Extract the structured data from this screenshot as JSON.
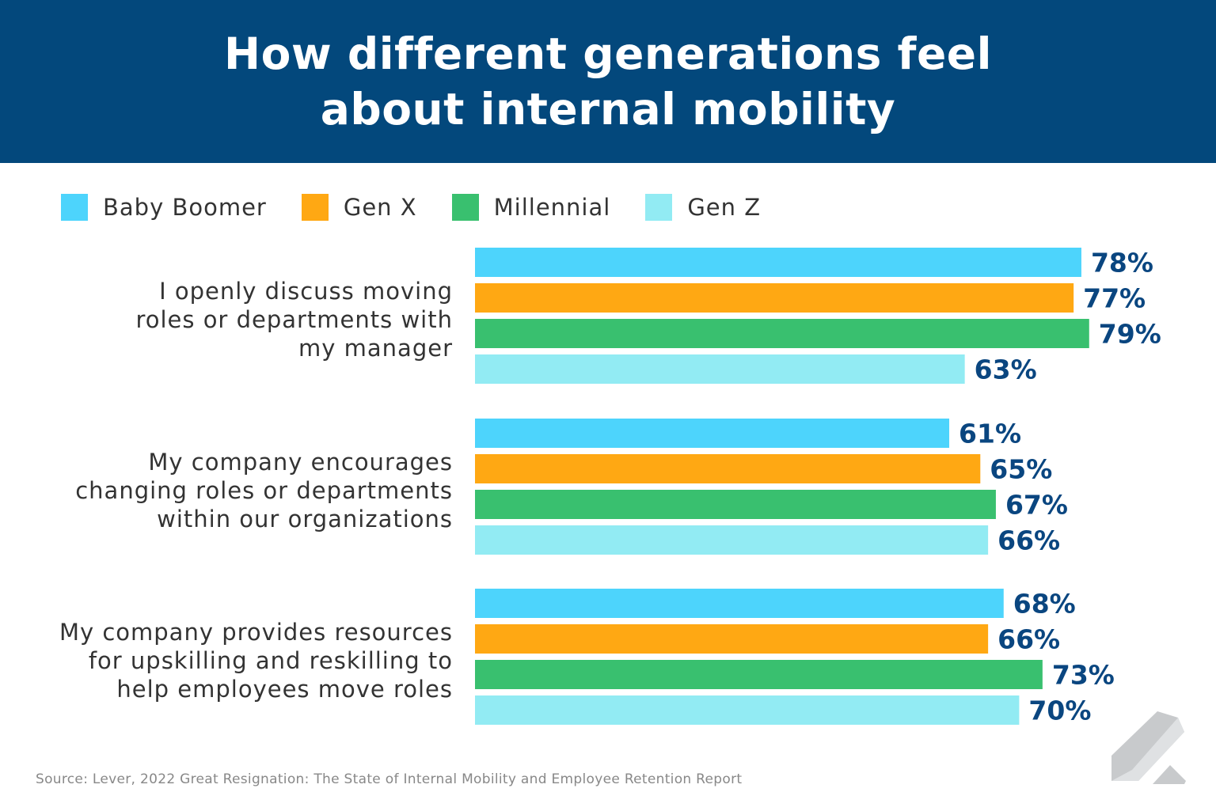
{
  "chart_data": {
    "type": "bar",
    "orientation": "horizontal",
    "title": "How different generations feel about internal mobility",
    "categories": [
      "I openly discuss moving roles or departments with my manager",
      "My company encourages changing roles or departments within our organizations",
      "My company provides resources for upskilling and reskilling to help employees move roles"
    ],
    "series": [
      {
        "name": "Baby Boomer",
        "color": "#4dd4fc",
        "values": [
          78,
          61,
          68
        ]
      },
      {
        "name": "Gen X",
        "color": "#ffa813",
        "values": [
          77,
          65,
          66
        ]
      },
      {
        "name": "Millennial",
        "color": "#39c06f",
        "values": [
          79,
          67,
          73
        ]
      },
      {
        "name": "Gen Z",
        "color": "#92ebf3",
        "values": [
          63,
          66,
          70
        ]
      }
    ],
    "value_suffix": "%",
    "xlim": [
      0,
      100
    ],
    "grid": false,
    "legend_position": "top-left",
    "label_color": "#0a4680"
  },
  "source": "Source: Lever, 2022 Great Resignation: The State of Internal Mobility and Employee Retention Report",
  "header_color": "#03487c"
}
